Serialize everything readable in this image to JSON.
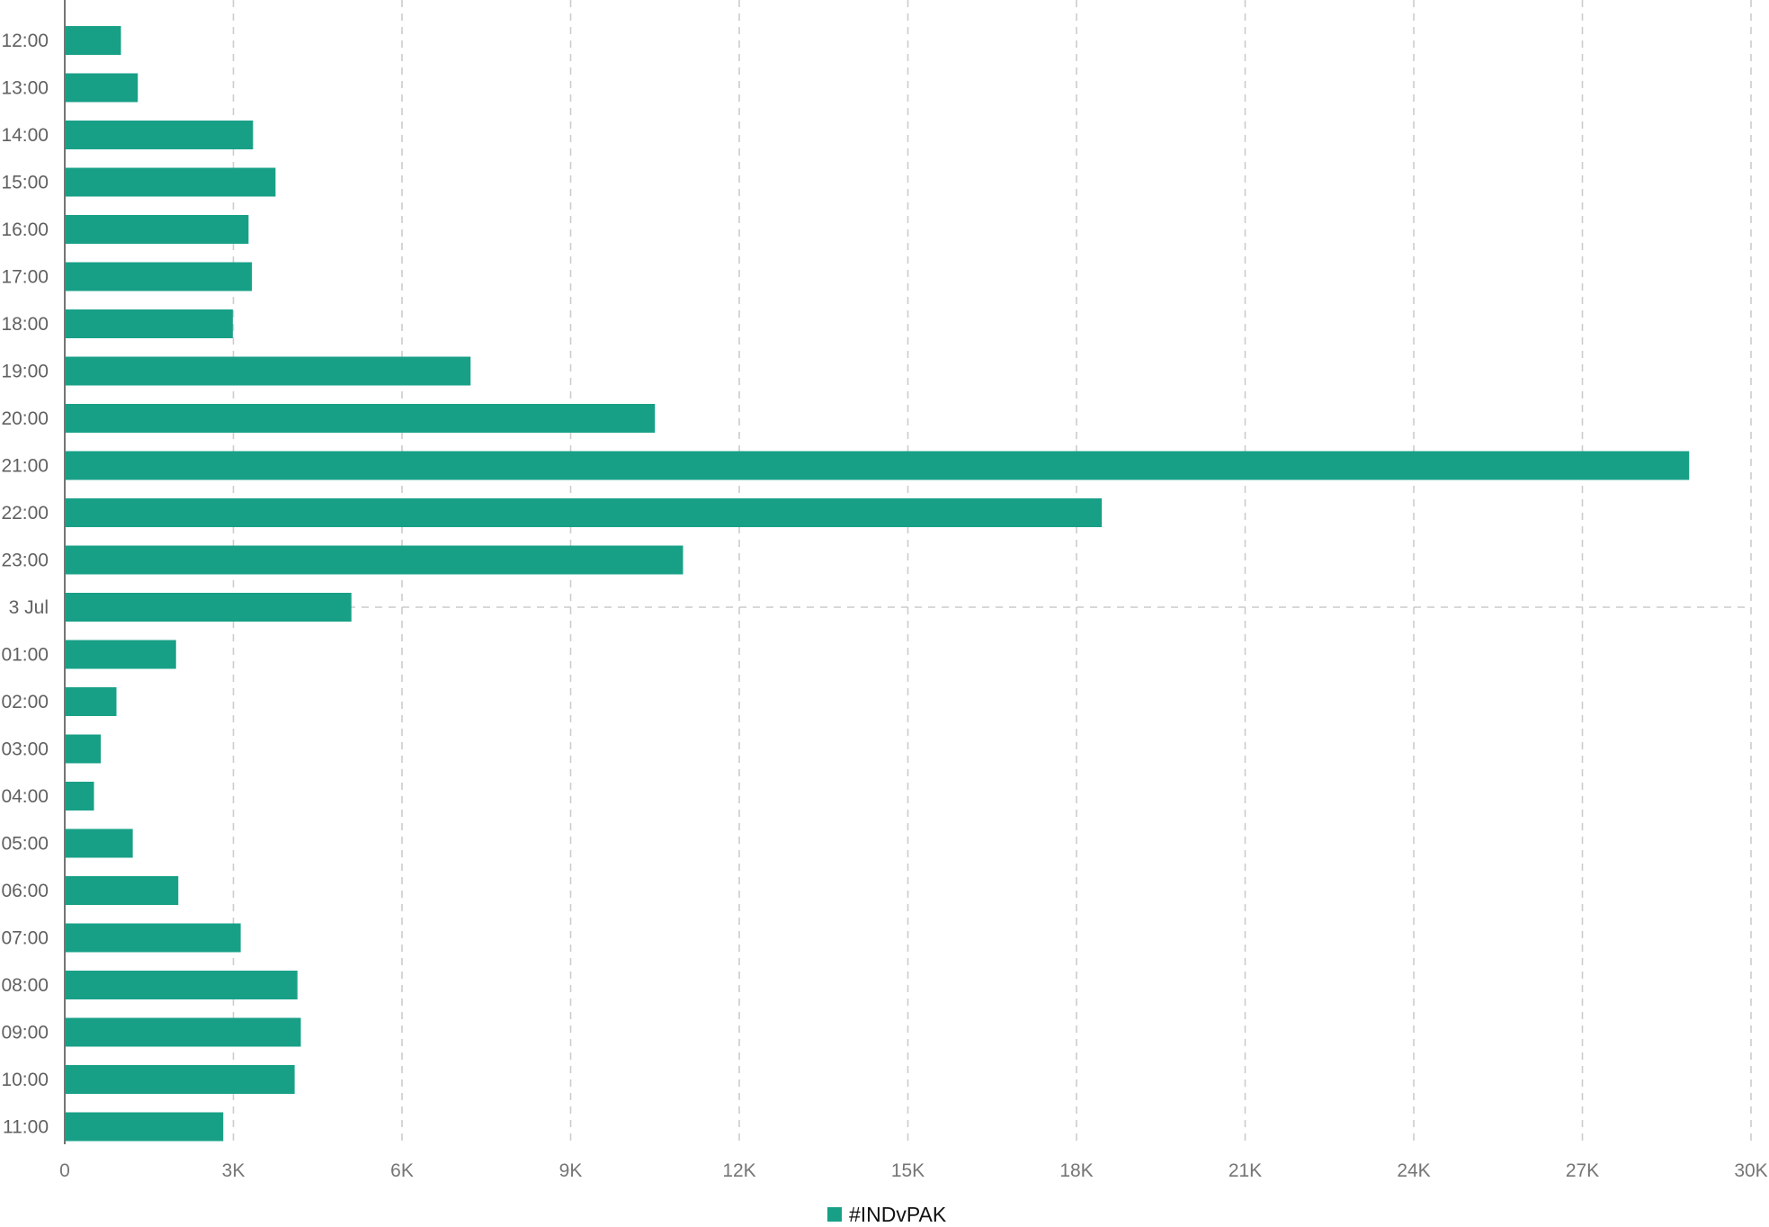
{
  "chart_data": {
    "type": "bar",
    "orientation": "horizontal",
    "categories": [
      "12:00",
      "13:00",
      "14:00",
      "15:00",
      "16:00",
      "17:00",
      "18:00",
      "19:00",
      "20:00",
      "21:00",
      "22:00",
      "23:00",
      "3 Jul",
      "01:00",
      "02:00",
      "03:00",
      "04:00",
      "05:00",
      "06:00",
      "07:00",
      "08:00",
      "09:00",
      "10:00",
      "11:00"
    ],
    "series": [
      {
        "name": "#INDvPAK",
        "color": "#18a087",
        "values": [
          1000,
          1300,
          3350,
          3750,
          3270,
          3330,
          2990,
          7220,
          10500,
          28900,
          18450,
          11000,
          5100,
          1980,
          920,
          640,
          520,
          1210,
          2020,
          3130,
          4140,
          4200,
          4090,
          2820
        ]
      }
    ],
    "x_ticks": [
      "0",
      "3K",
      "6K",
      "9K",
      "12K",
      "15K",
      "18K",
      "21K",
      "24K",
      "27K",
      "30K"
    ],
    "xlim": [
      0,
      30000
    ],
    "grid": true,
    "grid_style": "dashed",
    "highlighted_category": "3 Jul",
    "legend_position": "bottom-center"
  }
}
